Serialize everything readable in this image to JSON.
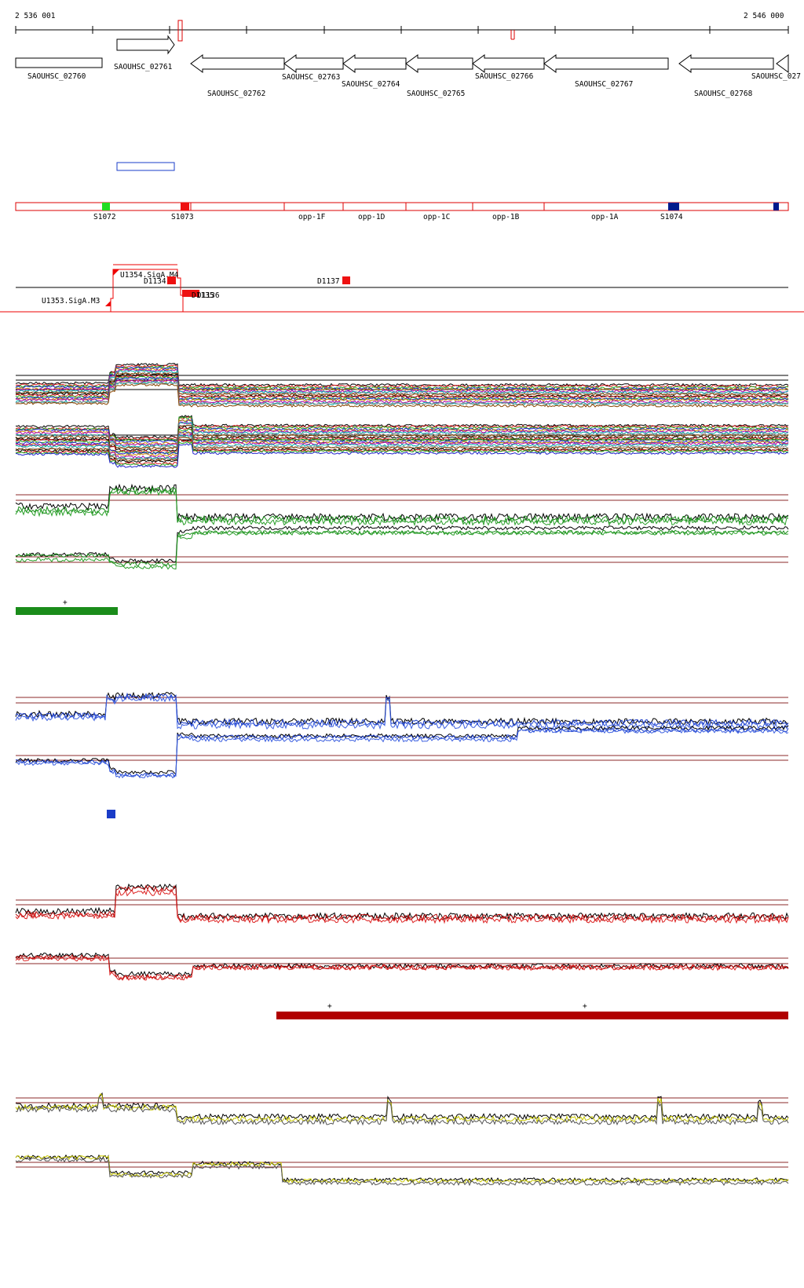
{
  "ruler": {
    "start_label": "2 536 001",
    "end_label": "2 546 000"
  },
  "genes": [
    {
      "name": "SAOUHSC_02760",
      "strand": "+"
    },
    {
      "name": "SAOUHSC_02761",
      "strand": "+"
    },
    {
      "name": "SAOUHSC_02762",
      "strand": "-"
    },
    {
      "name": "SAOUHSC_02763",
      "strand": "-"
    },
    {
      "name": "SAOUHSC_02764",
      "strand": "-"
    },
    {
      "name": "SAOUHSC_02765",
      "strand": "-"
    },
    {
      "name": "SAOUHSC_02766",
      "strand": "-"
    },
    {
      "name": "SAOUHSC_02767",
      "strand": "-"
    },
    {
      "name": "SAOUHSC_02768",
      "strand": "-"
    },
    {
      "name": "SAOUHSC_027",
      "strand": "-"
    }
  ],
  "segments": [
    {
      "label": "S1072",
      "color": "#22dd22"
    },
    {
      "label": "S1073",
      "color": "#ee1111"
    },
    {
      "label": "opp-1F"
    },
    {
      "label": "opp-1D"
    },
    {
      "label": "opp-1C"
    },
    {
      "label": "opp-1B"
    },
    {
      "label": "opp-1A"
    },
    {
      "label": "S1074",
      "color": "#001a8c"
    }
  ],
  "features": {
    "upshifts": [
      "U1354.SigA.M4",
      "U1353.SigA.M3"
    ],
    "downshifts": [
      "D1134",
      "D1137",
      "D1135",
      "D1136"
    ]
  },
  "tracks": [
    {
      "name": "all-conditions",
      "colors": [
        "#000000",
        "#d22",
        "#2a2",
        "#22c",
        "#c80",
        "#a0a",
        "#0aa",
        "#888",
        "#840"
      ]
    },
    {
      "name": "green-condition",
      "color": "#1a8c1a",
      "marker": "+"
    },
    {
      "name": "blue-condition",
      "color": "#1a3cc8"
    },
    {
      "name": "red-condition",
      "color": "#b00000",
      "markers": [
        "+",
        "+"
      ]
    },
    {
      "name": "yellow-condition",
      "color": "#c8c800"
    }
  ],
  "colors": {
    "gene_outline": "#000000",
    "segment_outline": "#dd0000",
    "threshold_line": "#8b2a2a",
    "blue_box": "#1a3cc8"
  }
}
